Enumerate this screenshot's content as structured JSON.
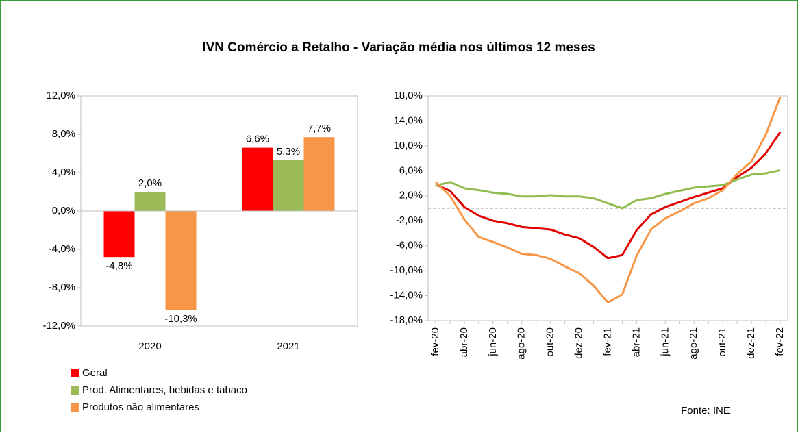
{
  "title": "IVN Comércio a Retalho - Variação média nos últimos 12 meses",
  "source": "Fonte: INE",
  "chart_data": [
    {
      "type": "bar",
      "categories": [
        "2020",
        "2021"
      ],
      "series": [
        {
          "name": "Geral",
          "color": "#ff0000",
          "values": [
            -4.8,
            6.6
          ],
          "value_labels": [
            "-4,8%",
            "6,6%"
          ]
        },
        {
          "name": "Prod. Alimentares, bebidas e tabaco",
          "color": "#9bbb59",
          "values": [
            2.0,
            5.3
          ],
          "value_labels": [
            "2,0%",
            "5,3%"
          ]
        },
        {
          "name": "Produtos não alimentares",
          "color": "#f79646",
          "values": [
            -10.3,
            7.7
          ],
          "value_labels": [
            "-10,3%",
            "7,7%"
          ]
        }
      ],
      "ylim": [
        -12,
        12
      ],
      "yticks": [
        {
          "value": -12,
          "label": "-12,0%"
        },
        {
          "value": -8,
          "label": "-8,0%"
        },
        {
          "value": -4,
          "label": "-4,0%"
        },
        {
          "value": 0,
          "label": "0,0%"
        },
        {
          "value": 4,
          "label": "4,0%"
        },
        {
          "value": 8,
          "label": "8,0%"
        },
        {
          "value": 12,
          "label": "12,0%"
        }
      ]
    },
    {
      "type": "line",
      "categories": [
        "fev-20",
        null,
        "abr-20",
        null,
        "jun-20",
        null,
        "ago-20",
        null,
        "out-20",
        null,
        "dez-20",
        null,
        "fev-21",
        null,
        "abr-21",
        null,
        "jun-21",
        null,
        "ago-21",
        null,
        "out-21",
        null,
        "dez-21",
        null,
        "fev-22"
      ],
      "series": [
        {
          "color": "#e00000",
          "values": [
            3.8,
            2.8,
            0.2,
            -1.2,
            -2.0,
            -2.4,
            -3.0,
            -3.2,
            -3.4,
            -4.2,
            -4.8,
            -6.2,
            -8.0,
            -7.5,
            -3.5,
            -1.0,
            0.2,
            1.0,
            1.8,
            2.5,
            3.2,
            5.0,
            6.5,
            8.8,
            12.2
          ]
        },
        {
          "color": "#8fbc4f",
          "values": [
            3.6,
            4.2,
            3.2,
            2.9,
            2.5,
            2.3,
            1.9,
            1.9,
            2.1,
            1.9,
            1.9,
            1.6,
            0.8,
            0.0,
            1.3,
            1.6,
            2.3,
            2.8,
            3.3,
            3.5,
            3.7,
            4.6,
            5.4,
            5.6,
            6.1
          ]
        },
        {
          "color": "#f79646",
          "values": [
            4.2,
            2.0,
            -1.8,
            -4.6,
            -5.4,
            -6.3,
            -7.3,
            -7.5,
            -8.1,
            -9.3,
            -10.4,
            -12.4,
            -15.1,
            -13.8,
            -7.6,
            -3.4,
            -1.6,
            -0.5,
            0.8,
            1.6,
            2.9,
            5.5,
            7.5,
            11.8,
            17.8
          ]
        }
      ],
      "ylim": [
        -18,
        18
      ],
      "yticks": [
        {
          "value": -18,
          "label": "-18,0%"
        },
        {
          "value": -14,
          "label": "-14,0%"
        },
        {
          "value": -10,
          "label": "-10,0%"
        },
        {
          "value": -6,
          "label": "-6,0%"
        },
        {
          "value": -2,
          "label": "-2,0%"
        },
        {
          "value": 2,
          "label": "2,0%"
        },
        {
          "value": 6,
          "label": "6,0%"
        },
        {
          "value": 10,
          "label": "10,0%"
        },
        {
          "value": 14,
          "label": "14,0%"
        },
        {
          "value": 18,
          "label": "18,0%"
        }
      ],
      "zero_line": true
    }
  ]
}
